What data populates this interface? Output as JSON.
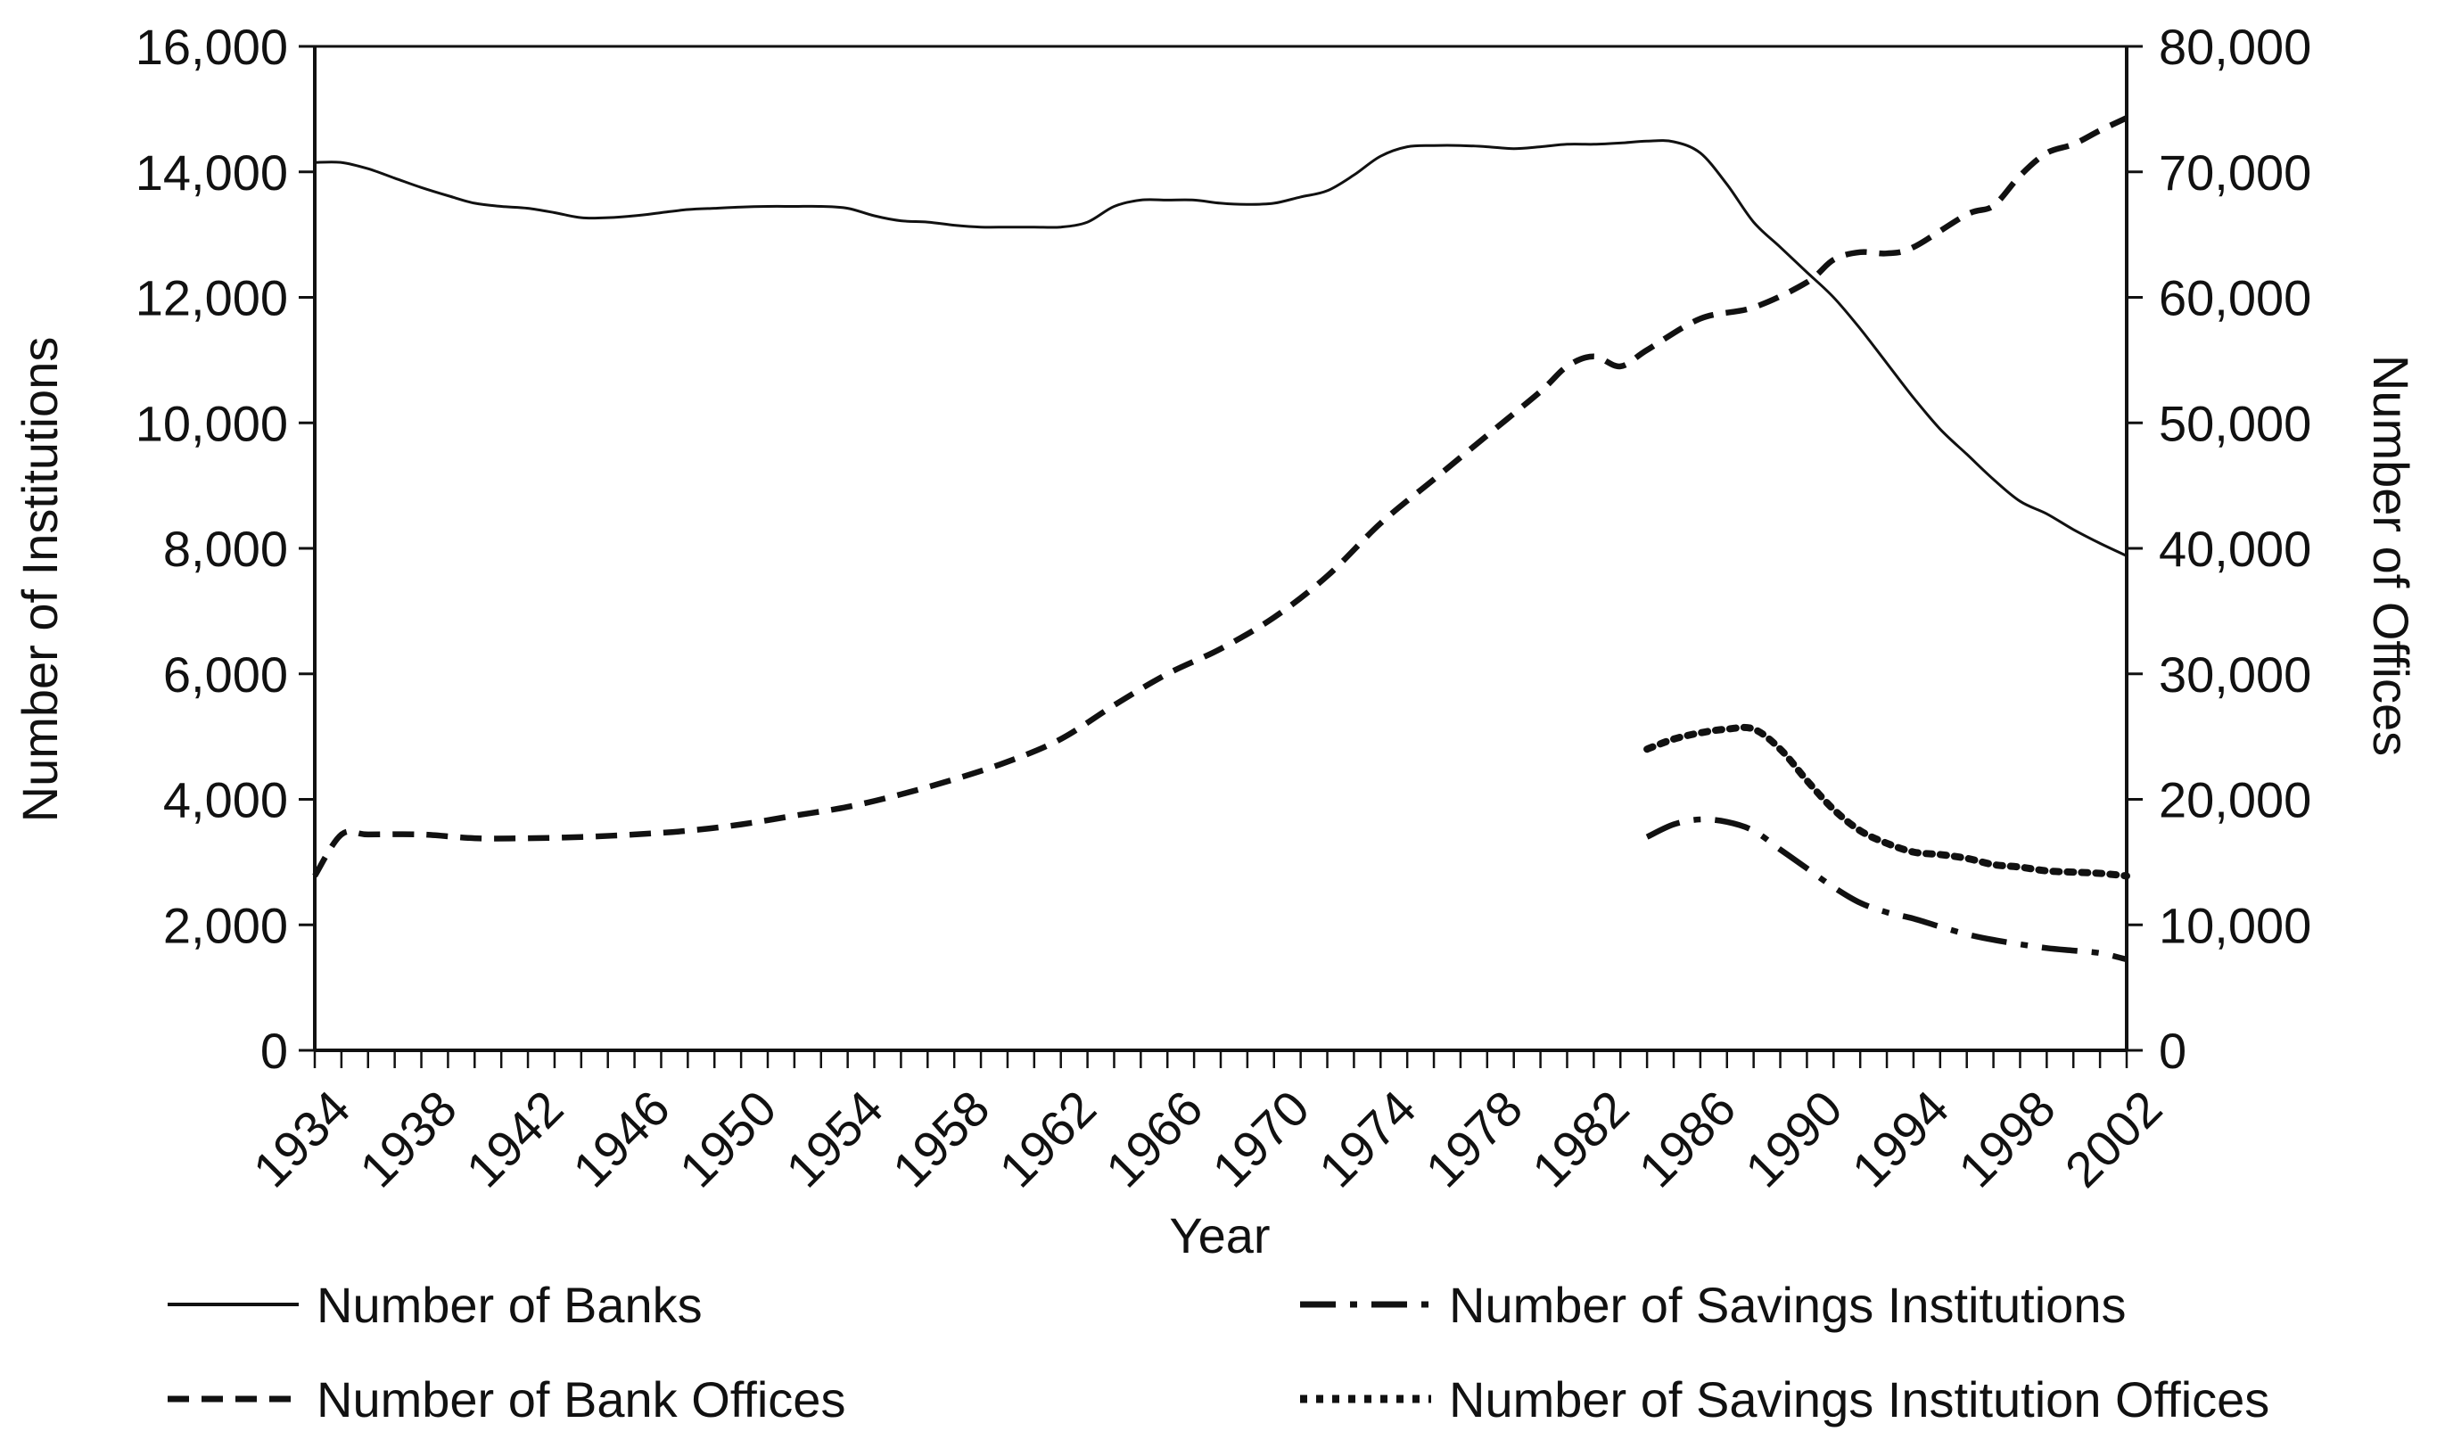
{
  "chart_data": {
    "type": "line",
    "title": "",
    "xlabel": "Year",
    "ylabel_left": "Number of Institutions",
    "ylabel_right": "Number of Offices",
    "xlim": [
      1934,
      2002
    ],
    "ylim_left": [
      0,
      16000
    ],
    "ylim_right": [
      0,
      80000
    ],
    "x_ticks": [
      "1934",
      "1938",
      "1942",
      "1946",
      "1950",
      "1954",
      "1958",
      "1962",
      "1966",
      "1970",
      "1974",
      "1978",
      "1982",
      "1986",
      "1990",
      "1994",
      "1998",
      "2002"
    ],
    "y_ticks_left": [
      "0",
      "2,000",
      "4,000",
      "6,000",
      "8,000",
      "10,000",
      "12,000",
      "14,000",
      "16,000"
    ],
    "y_ticks_right": [
      "0",
      "10,000",
      "20,000",
      "30,000",
      "40,000",
      "50,000",
      "60,000",
      "70,000",
      "80,000"
    ],
    "grid": false,
    "legend_position": "bottom",
    "series": [
      {
        "name": "Number of Banks",
        "axis": "left",
        "style": "solid",
        "color": "#111111",
        "points": [
          [
            1934,
            14150
          ],
          [
            1935,
            14150
          ],
          [
            1936,
            14050
          ],
          [
            1937,
            13900
          ],
          [
            1938,
            13750
          ],
          [
            1939,
            13620
          ],
          [
            1940,
            13500
          ],
          [
            1941,
            13450
          ],
          [
            1942,
            13420
          ],
          [
            1943,
            13350
          ],
          [
            1944,
            13270
          ],
          [
            1945,
            13270
          ],
          [
            1946,
            13300
          ],
          [
            1947,
            13350
          ],
          [
            1948,
            13400
          ],
          [
            1949,
            13420
          ],
          [
            1950,
            13440
          ],
          [
            1951,
            13450
          ],
          [
            1952,
            13450
          ],
          [
            1953,
            13450
          ],
          [
            1954,
            13420
          ],
          [
            1955,
            13300
          ],
          [
            1956,
            13220
          ],
          [
            1957,
            13200
          ],
          [
            1958,
            13150
          ],
          [
            1959,
            13120
          ],
          [
            1960,
            13120
          ],
          [
            1961,
            13120
          ],
          [
            1962,
            13120
          ],
          [
            1963,
            13200
          ],
          [
            1964,
            13450
          ],
          [
            1965,
            13550
          ],
          [
            1966,
            13550
          ],
          [
            1967,
            13550
          ],
          [
            1968,
            13500
          ],
          [
            1969,
            13480
          ],
          [
            1970,
            13500
          ],
          [
            1971,
            13600
          ],
          [
            1972,
            13700
          ],
          [
            1973,
            13950
          ],
          [
            1974,
            14250
          ],
          [
            1975,
            14400
          ],
          [
            1976,
            14420
          ],
          [
            1977,
            14420
          ],
          [
            1978,
            14400
          ],
          [
            1979,
            14370
          ],
          [
            1980,
            14400
          ],
          [
            1981,
            14440
          ],
          [
            1982,
            14440
          ],
          [
            1983,
            14460
          ],
          [
            1984,
            14490
          ],
          [
            1985,
            14480
          ],
          [
            1986,
            14300
          ],
          [
            1987,
            13800
          ],
          [
            1988,
            13200
          ],
          [
            1989,
            12800
          ],
          [
            1990,
            12400
          ],
          [
            1991,
            12000
          ],
          [
            1992,
            11500
          ],
          [
            1993,
            10950
          ],
          [
            1994,
            10400
          ],
          [
            1995,
            9900
          ],
          [
            1996,
            9500
          ],
          [
            1997,
            9100
          ],
          [
            1998,
            8750
          ],
          [
            1999,
            8550
          ],
          [
            2000,
            8300
          ],
          [
            2001,
            8080
          ],
          [
            2002,
            7880
          ]
        ]
      },
      {
        "name": "Number of Bank Offices",
        "axis": "right",
        "style": "dashed",
        "color": "#111111",
        "points": [
          [
            1934,
            13900
          ],
          [
            1935,
            17200
          ],
          [
            1936,
            17200
          ],
          [
            1938,
            17200
          ],
          [
            1940,
            16900
          ],
          [
            1942,
            16900
          ],
          [
            1944,
            17000
          ],
          [
            1946,
            17200
          ],
          [
            1948,
            17500
          ],
          [
            1950,
            18000
          ],
          [
            1952,
            18700
          ],
          [
            1954,
            19400
          ],
          [
            1956,
            20400
          ],
          [
            1958,
            21600
          ],
          [
            1960,
            23000
          ],
          [
            1962,
            24800
          ],
          [
            1964,
            27500
          ],
          [
            1966,
            30000
          ],
          [
            1968,
            32000
          ],
          [
            1970,
            34500
          ],
          [
            1972,
            37800
          ],
          [
            1974,
            42000
          ],
          [
            1976,
            45500
          ],
          [
            1978,
            49000
          ],
          [
            1980,
            52500
          ],
          [
            1981,
            54500
          ],
          [
            1982,
            55300
          ],
          [
            1983,
            54500
          ],
          [
            1984,
            55800
          ],
          [
            1986,
            58300
          ],
          [
            1988,
            59200
          ],
          [
            1990,
            61200
          ],
          [
            1991,
            63000
          ],
          [
            1992,
            63600
          ],
          [
            1993,
            63500
          ],
          [
            1994,
            64000
          ],
          [
            1996,
            66600
          ],
          [
            1997,
            67300
          ],
          [
            1998,
            69700
          ],
          [
            1999,
            71500
          ],
          [
            2000,
            72200
          ],
          [
            2001,
            73300
          ],
          [
            2002,
            74300
          ]
        ]
      },
      {
        "name": "Number of Savings Institutions",
        "axis": "left",
        "style": "dash-dot",
        "color": "#111111",
        "points": [
          [
            1984,
            3400
          ],
          [
            1985,
            3600
          ],
          [
            1986,
            3680
          ],
          [
            1987,
            3640
          ],
          [
            1988,
            3500
          ],
          [
            1989,
            3200
          ],
          [
            1990,
            2900
          ],
          [
            1991,
            2600
          ],
          [
            1992,
            2350
          ],
          [
            1993,
            2200
          ],
          [
            1994,
            2100
          ],
          [
            1995,
            1970
          ],
          [
            1996,
            1850
          ],
          [
            1997,
            1760
          ],
          [
            1998,
            1690
          ],
          [
            1999,
            1630
          ],
          [
            2000,
            1590
          ],
          [
            2001,
            1550
          ],
          [
            2002,
            1450
          ]
        ]
      },
      {
        "name": "Number of Savings Institution Offices",
        "axis": "right",
        "style": "dotted",
        "color": "#111111",
        "points": [
          [
            1984,
            24000
          ],
          [
            1985,
            24800
          ],
          [
            1986,
            25300
          ],
          [
            1987,
            25600
          ],
          [
            1988,
            25600
          ],
          [
            1989,
            24000
          ],
          [
            1990,
            21500
          ],
          [
            1991,
            19200
          ],
          [
            1992,
            17500
          ],
          [
            1993,
            16500
          ],
          [
            1994,
            15800
          ],
          [
            1995,
            15600
          ],
          [
            1996,
            15300
          ],
          [
            1997,
            14800
          ],
          [
            1998,
            14600
          ],
          [
            1999,
            14300
          ],
          [
            2000,
            14200
          ],
          [
            2001,
            14100
          ],
          [
            2002,
            13900
          ]
        ]
      }
    ]
  }
}
